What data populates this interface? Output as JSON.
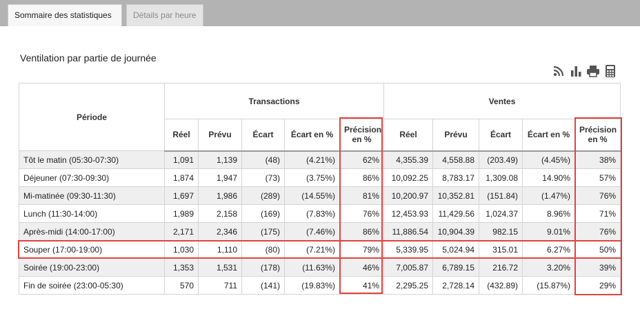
{
  "tabs": [
    {
      "label": "Sommaire des statistiques"
    },
    {
      "label": "Détails par heure"
    }
  ],
  "section_title": "Ventilation par partie de journée",
  "toolbar_icons": [
    "rss-icon",
    "bar-chart-icon",
    "print-icon",
    "calculator-icon"
  ],
  "table": {
    "period_header": "Période",
    "group_transactions": "Transactions",
    "group_ventes": "Ventes",
    "sub_headers": {
      "reel": "Réel",
      "prevu": "Prévu",
      "ecart": "Écart",
      "ecart_pct": "Écart en %",
      "precision_line1": "Précision",
      "precision_line2": "en %"
    },
    "rows": [
      {
        "period": "Tôt le matin (05:30-07:30)",
        "t_reel": "1,091",
        "t_prevu": "1,139",
        "t_ecart": "(48)",
        "t_ecart_pct": "(4.21%)",
        "t_precision": "62%",
        "v_reel": "4,355.39",
        "v_prevu": "4,558.88",
        "v_ecart": "(203.49)",
        "v_ecart_pct": "(4.45%)",
        "v_precision": "38%"
      },
      {
        "period": "Déjeuner (07:30-09:30)",
        "t_reel": "1,874",
        "t_prevu": "1,947",
        "t_ecart": "(73)",
        "t_ecart_pct": "(3.75%)",
        "t_precision": "86%",
        "v_reel": "10,092.25",
        "v_prevu": "8,783.17",
        "v_ecart": "1,309.08",
        "v_ecart_pct": "14.90%",
        "v_precision": "57%"
      },
      {
        "period": "Mi-matinée (09:30-11:30)",
        "t_reel": "1,697",
        "t_prevu": "1,986",
        "t_ecart": "(289)",
        "t_ecart_pct": "(14.55%)",
        "t_precision": "81%",
        "v_reel": "10,200.97",
        "v_prevu": "10,352.81",
        "v_ecart": "(151.84)",
        "v_ecart_pct": "(1.47%)",
        "v_precision": "76%"
      },
      {
        "period": "Lunch (11:30-14:00)",
        "t_reel": "1,989",
        "t_prevu": "2,158",
        "t_ecart": "(169)",
        "t_ecart_pct": "(7.83%)",
        "t_precision": "76%",
        "v_reel": "12,453.93",
        "v_prevu": "11,429.56",
        "v_ecart": "1,024.37",
        "v_ecart_pct": "8.96%",
        "v_precision": "71%"
      },
      {
        "period": "Après-midi (14:00-17:00)",
        "t_reel": "2,171",
        "t_prevu": "2,346",
        "t_ecart": "(175)",
        "t_ecart_pct": "(7.46%)",
        "t_precision": "86%",
        "v_reel": "11,886.54",
        "v_prevu": "10,904.39",
        "v_ecart": "982.15",
        "v_ecart_pct": "9.01%",
        "v_precision": "76%"
      },
      {
        "period": "Souper (17:00-19:00)",
        "t_reel": "1,030",
        "t_prevu": "1,110",
        "t_ecart": "(80)",
        "t_ecart_pct": "(7.21%)",
        "t_precision": "79%",
        "v_reel": "5,339.95",
        "v_prevu": "5,024.94",
        "v_ecart": "315.01",
        "v_ecart_pct": "6.27%",
        "v_precision": "50%"
      },
      {
        "period": "Soirée (19:00-23:00)",
        "t_reel": "1,353",
        "t_prevu": "1,531",
        "t_ecart": "(178)",
        "t_ecart_pct": "(11.63%)",
        "t_precision": "46%",
        "v_reel": "7,005.87",
        "v_prevu": "6,789.15",
        "v_ecart": "216.72",
        "v_ecart_pct": "3.20%",
        "v_precision": "39%"
      },
      {
        "period": "Fin de soirée (23:00-05:30)",
        "t_reel": "570",
        "t_prevu": "711",
        "t_ecart": "(141)",
        "t_ecart_pct": "(19.83%)",
        "t_precision": "41%",
        "v_reel": "2,295.25",
        "v_prevu": "2,728.14",
        "v_ecart": "(432.89)",
        "v_ecart_pct": "(15.87%)",
        "v_precision": "29%"
      }
    ]
  },
  "colors": {
    "tabbar": "#b3b3b3",
    "highlight": "#e0433f",
    "row_alt": "#efefef"
  }
}
